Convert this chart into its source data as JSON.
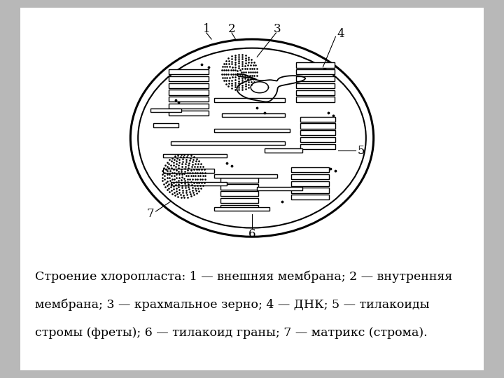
{
  "bg_color": "#b8b8b8",
  "panel_color": "#ffffff",
  "text_color": "#000000",
  "caption_line1": "Строение хлоропласта: 1 — внешняя мембрана; 2 — внутренняя",
  "caption_line2": "мембрана; 3 — крахмальное зерно; 4 — ДНК; 5 — тилакоиды",
  "caption_line3": "стромы (фреты); 6 — тилакоид граны; 7 — матрикс (строма).",
  "caption_fontsize": 12.5,
  "label_fontsize": 12
}
